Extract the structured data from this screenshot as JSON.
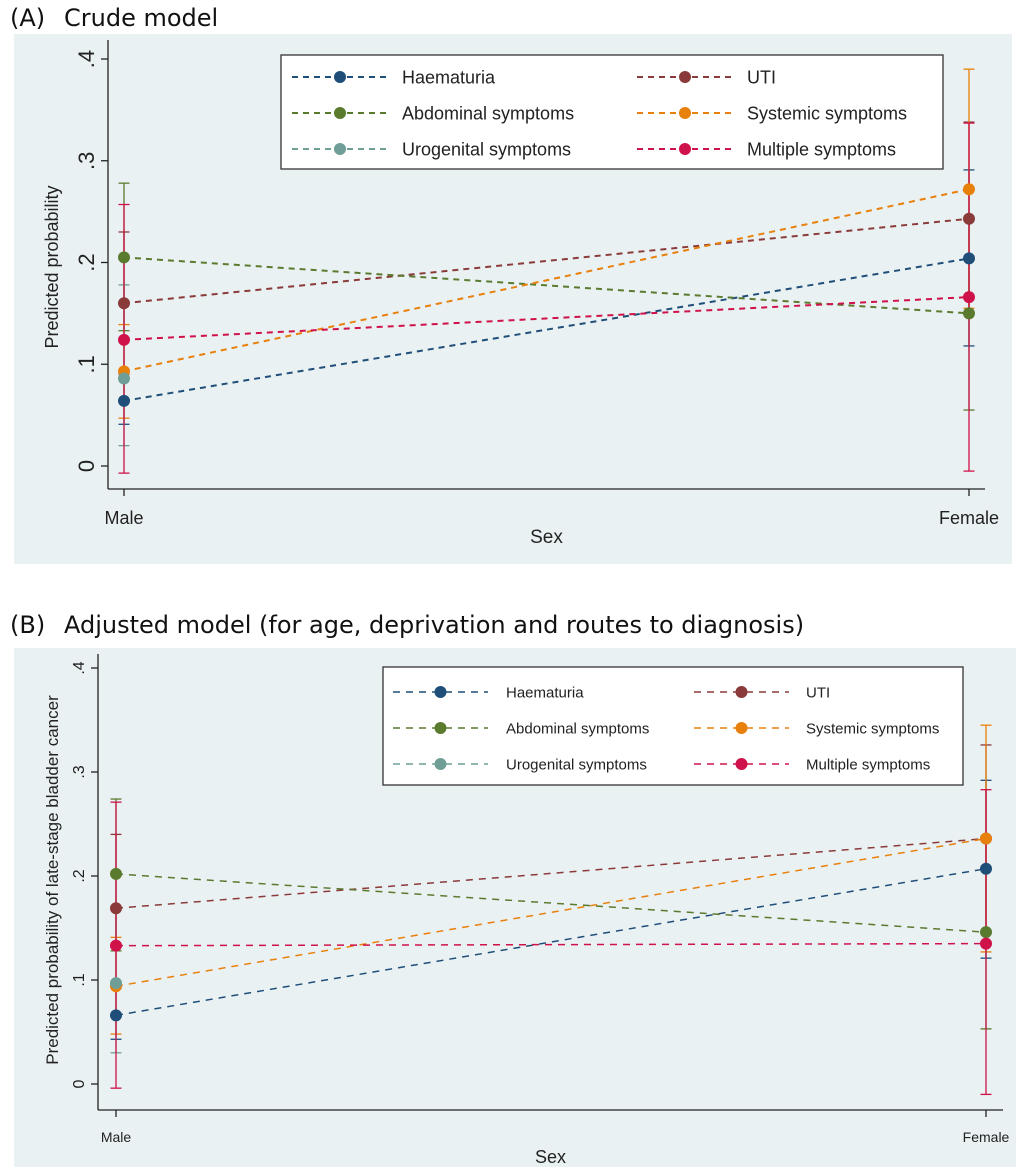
{
  "figure": {
    "panel_a": {
      "letter": "(A)",
      "heading": "Crude model"
    },
    "panel_b": {
      "letter": "(B)",
      "heading": "Adjusted model (for age, deprivation and routes to diagnosis)"
    }
  },
  "chart_data": [
    {
      "type": "line",
      "title": "Crude model",
      "xlabel": "Sex",
      "ylabel": "Predicted probability",
      "categories": [
        "Male",
        "Female"
      ],
      "ylim": [
        0,
        0.4
      ],
      "yticks": [
        0,
        0.1,
        0.2,
        0.3,
        0.4
      ],
      "ytick_labels": [
        "0",
        ".1",
        ".2",
        ".3",
        ".4"
      ],
      "grid": false,
      "legend_position": "top",
      "series": [
        {
          "name": "Haematuria",
          "color": "#1f4e79",
          "values": [
            0.064,
            0.204
          ],
          "ci_low": [
            0.041,
            0.118
          ],
          "ci_high": [
            0.088,
            0.291
          ]
        },
        {
          "name": "UTI",
          "color": "#8b3a3a",
          "values": [
            0.16,
            0.243
          ],
          "ci_low": [
            0.09,
            0.152
          ],
          "ci_high": [
            0.23,
            0.338
          ]
        },
        {
          "name": "Abdominal symptoms",
          "color": "#5a7a2e",
          "values": [
            0.205,
            0.15
          ],
          "ci_low": [
            0.133,
            0.055
          ],
          "ci_high": [
            0.278,
            0.245
          ]
        },
        {
          "name": "Systemic symptoms",
          "color": "#e8800c",
          "values": [
            0.093,
            0.272
          ],
          "ci_low": [
            0.047,
            0.155
          ],
          "ci_high": [
            0.139,
            0.39
          ]
        },
        {
          "name": "Urogenital symptoms",
          "color": "#6f9e96",
          "values": [
            0.086,
            null
          ],
          "ci_low": [
            0.02,
            null
          ],
          "ci_high": [
            0.178,
            null
          ]
        },
        {
          "name": "Multiple symptoms",
          "color": "#d0124a",
          "values": [
            0.124,
            0.166
          ],
          "ci_low": [
            -0.007,
            -0.005
          ],
          "ci_high": [
            0.257,
            0.337
          ]
        }
      ]
    },
    {
      "type": "line",
      "title": "Adjusted model (for age, deprivation and routes to diagnosis)",
      "xlabel": "Sex",
      "ylabel": "Predicted probability of late-stage bladder cancer",
      "categories": [
        "Male",
        "Female"
      ],
      "ylim": [
        0,
        0.4
      ],
      "yticks": [
        0,
        0.1,
        0.2,
        0.3,
        0.4
      ],
      "ytick_labels": [
        "0",
        ".1",
        ".2",
        ".3",
        ".4"
      ],
      "grid": false,
      "legend_position": "top",
      "series": [
        {
          "name": "Haematuria",
          "color": "#1f4e79",
          "values": [
            0.066,
            0.207
          ],
          "ci_low": [
            0.043,
            0.121
          ],
          "ci_high": [
            0.092,
            0.292
          ]
        },
        {
          "name": "UTI",
          "color": "#8b3a3a",
          "values": [
            0.169,
            0.236
          ],
          "ci_low": [
            0.096,
            0.148
          ],
          "ci_high": [
            0.24,
            0.326
          ]
        },
        {
          "name": "Abdominal symptoms",
          "color": "#5a7a2e",
          "values": [
            0.202,
            0.146
          ],
          "ci_low": [
            0.128,
            0.053
          ],
          "ci_high": [
            0.274,
            0.238
          ]
        },
        {
          "name": "Systemic symptoms",
          "color": "#e8800c",
          "values": [
            0.094,
            0.236
          ],
          "ci_low": [
            0.048,
            0.127
          ],
          "ci_high": [
            0.141,
            0.345
          ]
        },
        {
          "name": "Urogenital symptoms",
          "color": "#6f9e96",
          "values": [
            0.097,
            null
          ],
          "ci_low": [
            0.03,
            null
          ],
          "ci_high": [
            0.17,
            null
          ]
        },
        {
          "name": "Multiple symptoms",
          "color": "#d0124a",
          "values": [
            0.133,
            0.135
          ],
          "ci_low": [
            -0.004,
            -0.01
          ],
          "ci_high": [
            0.271,
            0.283
          ]
        }
      ]
    }
  ]
}
